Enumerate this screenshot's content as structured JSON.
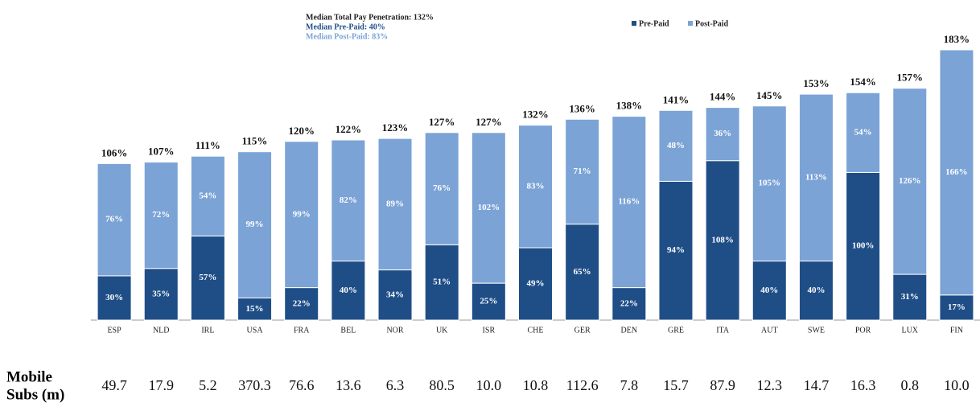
{
  "chart_data": {
    "type": "bar",
    "stacked": true,
    "annotations": [
      "Median Total Pay Penetration: 132%",
      "Median Pre-Paid: 40%",
      "Median Post-Paid: 83%"
    ],
    "categories": [
      "ESP",
      "NLD",
      "IRL",
      "USA",
      "FRA",
      "BEL",
      "NOR",
      "UK",
      "ISR",
      "CHE",
      "GER",
      "DEN",
      "GRE",
      "ITA",
      "AUT",
      "SWE",
      "POR",
      "LUX",
      "FIN"
    ],
    "series": [
      {
        "name": "Pre-Paid",
        "color": "#1f4e87",
        "values": [
          30,
          35,
          57,
          15,
          22,
          40,
          34,
          51,
          25,
          49,
          65,
          22,
          94,
          108,
          40,
          40,
          100,
          31,
          17
        ],
        "value_labels": [
          "30%",
          "35%",
          "57%",
          "15%",
          "22%",
          "40%",
          "34%",
          "51%",
          "25%",
          "49%",
          "65%",
          "22%",
          "94%",
          "108%",
          "40%",
          "40%",
          "100%",
          "31%",
          "17%"
        ]
      },
      {
        "name": "Post-Paid",
        "color": "#7ba3d6",
        "values": [
          76,
          72,
          54,
          99,
          99,
          82,
          89,
          76,
          102,
          83,
          71,
          116,
          48,
          36,
          105,
          113,
          54,
          126,
          166
        ],
        "value_labels": [
          "76%",
          "72%",
          "54%",
          "99%",
          "99%",
          "82%",
          "89%",
          "76%",
          "102%",
          "83%",
          "71%",
          "116%",
          "48%",
          "36%",
          "105%",
          "113%",
          "54%",
          "126%",
          "166%"
        ]
      }
    ],
    "total_labels": [
      "106%",
      "107%",
      "111%",
      "115%",
      "120%",
      "122%",
      "123%",
      "127%",
      "127%",
      "132%",
      "136%",
      "138%",
      "141%",
      "144%",
      "145%",
      "153%",
      "154%",
      "157%",
      "183%"
    ],
    "ylim": [
      0,
      183
    ],
    "subs_label": [
      "Mobile",
      "Subs (m)"
    ],
    "subs": [
      "49.7",
      "17.9",
      "5.2",
      "370.3",
      "76.6",
      "13.6",
      "6.3",
      "80.5",
      "10.0",
      "10.8",
      "112.6",
      "7.8",
      "15.7",
      "87.9",
      "12.3",
      "14.7",
      "16.3",
      "0.8",
      "10.0"
    ]
  }
}
